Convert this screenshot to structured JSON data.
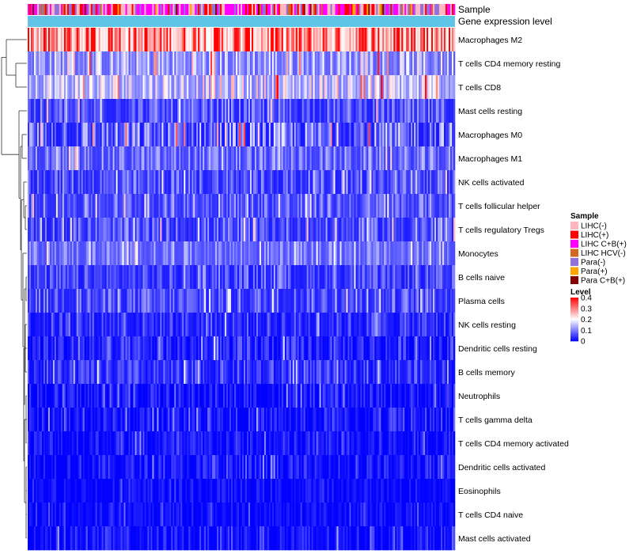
{
  "chart_data": {
    "type": "heatmap",
    "annotation_rows": [
      {
        "name": "Sample",
        "label": "Sample"
      },
      {
        "name": "Gene expression level",
        "label": "Gene expression level"
      }
    ],
    "rows": [
      {
        "label": "Macrophages M2",
        "mean": 0.27,
        "spread": 0.12
      },
      {
        "label": "T cells CD4 memory resting",
        "mean": 0.11,
        "spread": 0.07
      },
      {
        "label": "T cells CD8",
        "mean": 0.14,
        "spread": 0.08
      },
      {
        "label": "Mast cells resting",
        "mean": 0.05,
        "spread": 0.05
      },
      {
        "label": "Macrophages M0",
        "mean": 0.06,
        "spread": 0.08
      },
      {
        "label": "Macrophages M1",
        "mean": 0.07,
        "spread": 0.05
      },
      {
        "label": "NK cells activated",
        "mean": 0.05,
        "spread": 0.05
      },
      {
        "label": "T cells follicular helper",
        "mean": 0.06,
        "spread": 0.05
      },
      {
        "label": "T cells regulatory  Tregs",
        "mean": 0.05,
        "spread": 0.05
      },
      {
        "label": "Monocytes",
        "mean": 0.08,
        "spread": 0.04
      },
      {
        "label": "B cells naive",
        "mean": 0.04,
        "spread": 0.04
      },
      {
        "label": "Plasma cells",
        "mean": 0.05,
        "spread": 0.05
      },
      {
        "label": "NK cells resting",
        "mean": 0.03,
        "spread": 0.04
      },
      {
        "label": "Dendritic cells resting",
        "mean": 0.02,
        "spread": 0.04
      },
      {
        "label": "B cells memory",
        "mean": 0.03,
        "spread": 0.04
      },
      {
        "label": "Neutrophils",
        "mean": 0.01,
        "spread": 0.03
      },
      {
        "label": "T cells gamma delta",
        "mean": 0.01,
        "spread": 0.03
      },
      {
        "label": "T cells CD4 memory activated",
        "mean": 0.01,
        "spread": 0.03
      },
      {
        "label": "Dendritic cells activated",
        "mean": 0.01,
        "spread": 0.03
      },
      {
        "label": "Eosinophils",
        "mean": 0.005,
        "spread": 0.02
      },
      {
        "label": "T cells CD4 naive",
        "mean": 0.005,
        "spread": 0.02
      },
      {
        "label": "Mast cells activated",
        "mean": 0.01,
        "spread": 0.03
      }
    ],
    "n_samples": 271,
    "sample_legend": {
      "title": "Sample",
      "entries": [
        {
          "label": "LIHC(-)",
          "color": "#ffb6c1",
          "weight": 0.3
        },
        {
          "label": "LIHC(+)",
          "color": "#ff0000",
          "weight": 0.14
        },
        {
          "label": "LIHC C+B(+)",
          "color": "#ff00ff",
          "weight": 0.26
        },
        {
          "label": "LIHC HCV(-)",
          "color": "#d2691e",
          "weight": 0.05
        },
        {
          "label": "Para(-)",
          "color": "#9370db",
          "weight": 0.18
        },
        {
          "label": "Para(+)",
          "color": "#ffa500",
          "weight": 0.03
        },
        {
          "label": "Para C+B(+)",
          "color": "#800000",
          "weight": 0.04
        }
      ]
    },
    "gene_expression_color": "#5fc4e6",
    "level_legend": {
      "title": "Level",
      "range": [
        0,
        0.4
      ],
      "ticks": [
        {
          "value": 0.4,
          "label": "0.4"
        },
        {
          "value": 0.3,
          "label": "0.3"
        },
        {
          "value": 0.2,
          "label": "0.2"
        },
        {
          "value": 0.1,
          "label": "0.1"
        },
        {
          "value": 0,
          "label": "0"
        }
      ],
      "colors": {
        "low": "#0000ff",
        "mid": "#ffffff",
        "high": "#ff0000",
        "mid_value": 0.2
      }
    }
  }
}
